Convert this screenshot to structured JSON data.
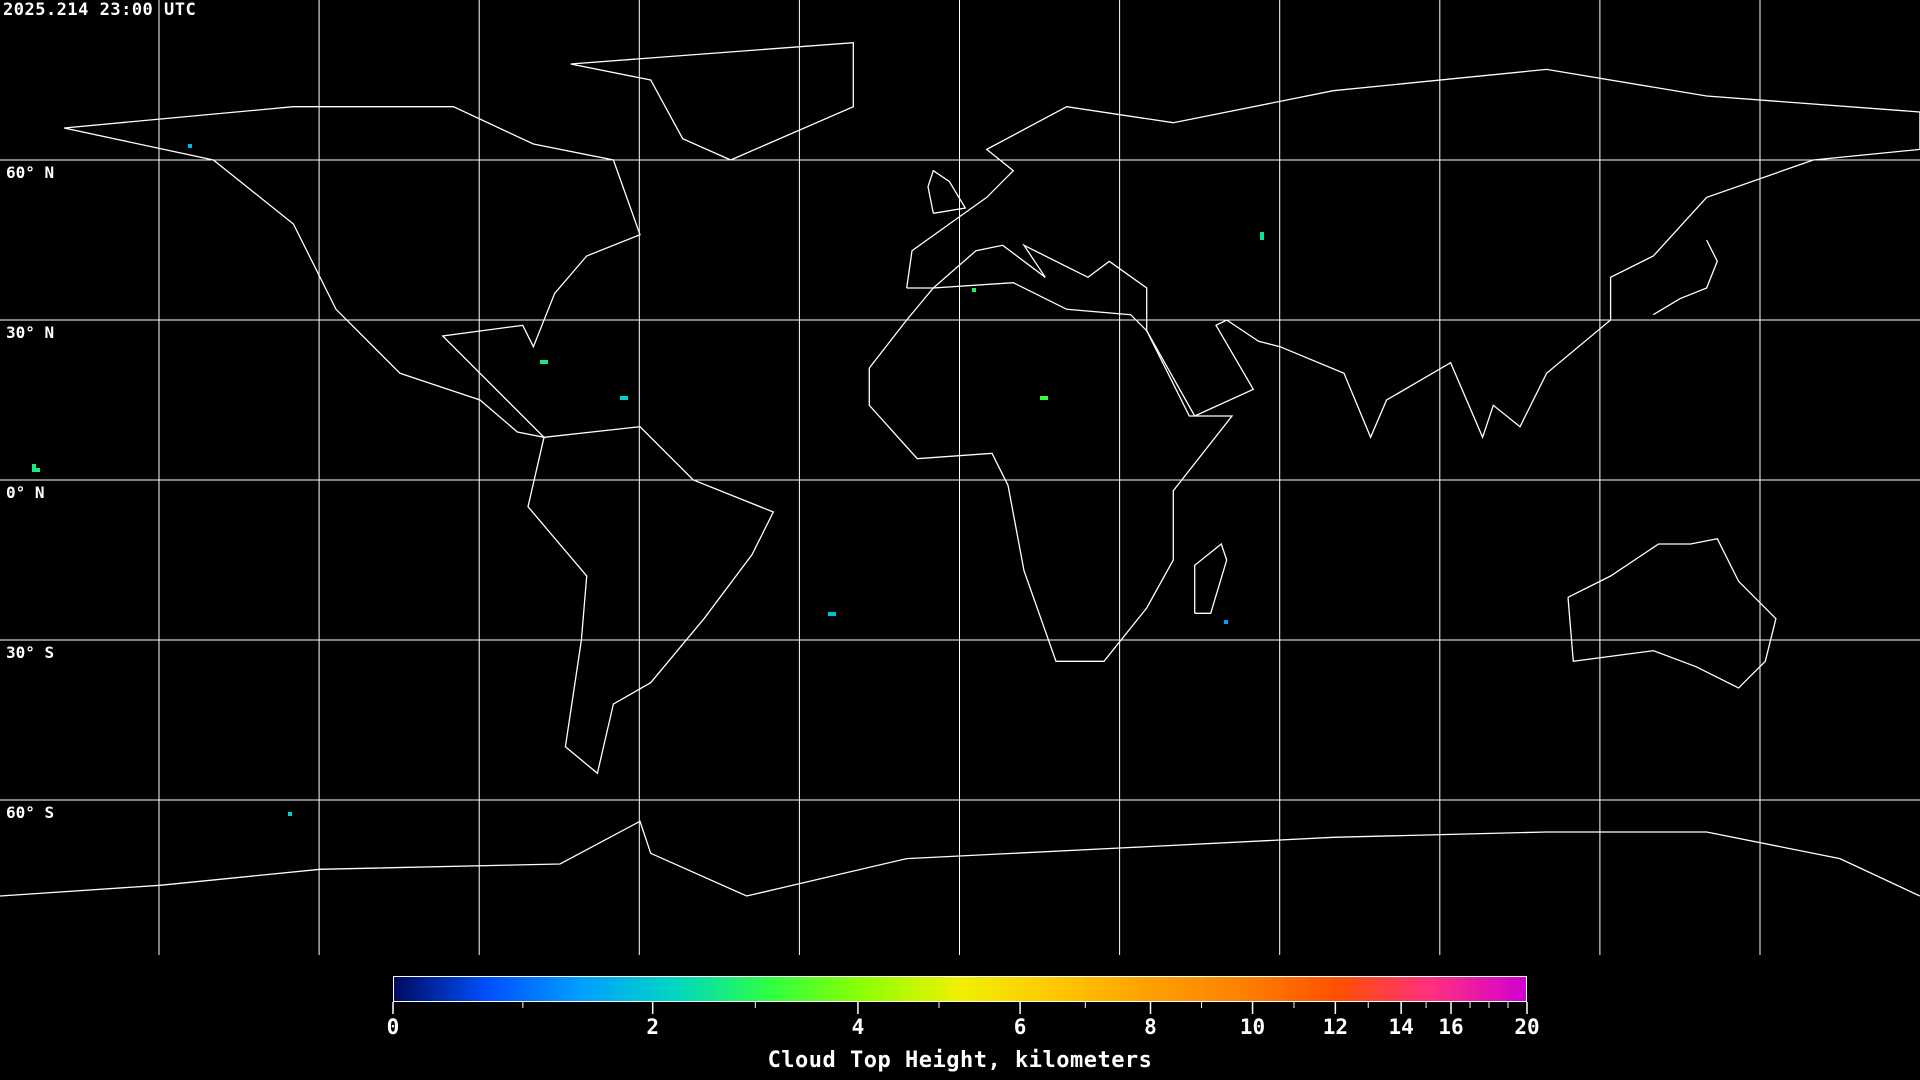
{
  "timestamp": "2025.214 23:00 UTC",
  "latitude_labels": [
    "60° N",
    "30° N",
    "0° N",
    "30° S",
    "60° S"
  ],
  "colorbar": {
    "title": "Cloud Top Height, kilometers",
    "tick_labels": [
      "0",
      "2",
      "4",
      "6",
      "8",
      "10",
      "12",
      "14",
      "16",
      "20"
    ],
    "major_ticks_km": [
      0,
      2,
      4,
      6,
      8,
      10,
      12,
      14,
      16,
      20
    ],
    "minor_ticks_km": [
      1,
      3,
      5,
      7,
      9,
      11,
      13,
      15,
      17,
      18,
      19
    ],
    "colormap": [
      "#000a60",
      "#0050ff",
      "#00a0ff",
      "#00d8c0",
      "#30ff40",
      "#90ff00",
      "#f0f000",
      "#ffc800",
      "#ffa000",
      "#ff8000",
      "#ff5000",
      "#ff3080",
      "#d000d0"
    ],
    "range_km": [
      0,
      20
    ]
  },
  "map": {
    "projection": "equirectangular",
    "gridline_spacing_deg": 30,
    "no_data_color": "#000000",
    "coastline_color": "#ffffff",
    "grid_color": "#ffffff"
  }
}
